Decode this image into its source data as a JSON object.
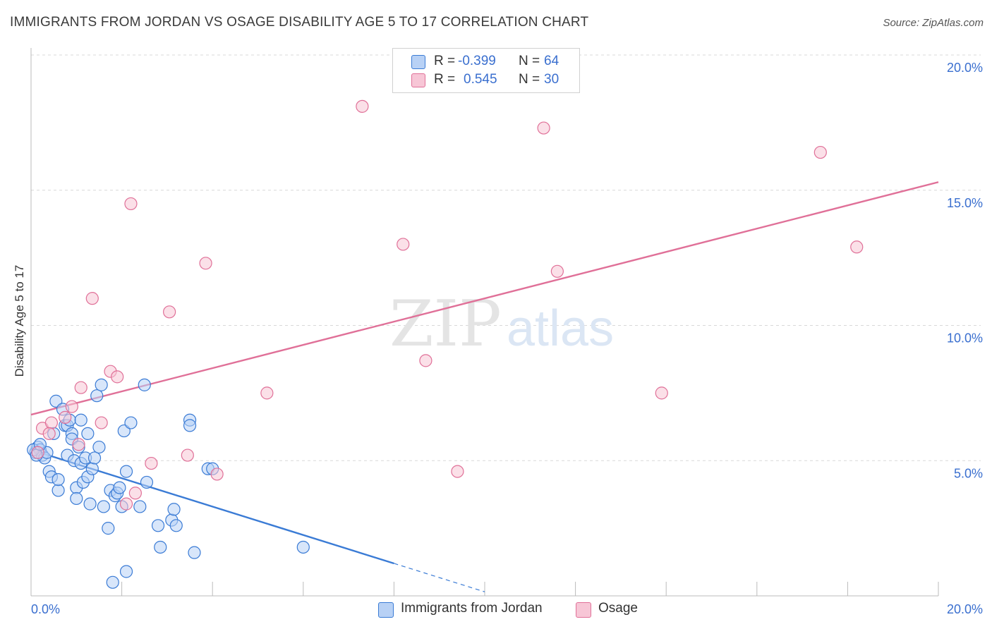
{
  "title": "IMMIGRANTS FROM JORDAN VS OSAGE DISABILITY AGE 5 TO 17 CORRELATION CHART",
  "source": "Source: ZipAtlas.com",
  "colors": {
    "blue": "#3a7bd5",
    "blue_fill": "#b8d1f5",
    "pink": "#e07098",
    "pink_fill": "#f7c6d6",
    "value_text": "#3a6fcf",
    "grid": "#d8d8d8"
  },
  "legend": {
    "rows": [
      {
        "r_label": "R =",
        "r_value": "-0.399",
        "n_label": "N =",
        "n_value": "64"
      },
      {
        "r_label": "R =",
        "r_value": "0.545",
        "n_label": "N =",
        "n_value": "30"
      }
    ]
  },
  "watermark": {
    "zip": "ZIP",
    "atlas": "atlas"
  },
  "chart_data": {
    "type": "scatter",
    "title": "IMMIGRANTS FROM JORDAN VS OSAGE DISABILITY AGE 5 TO 17 CORRELATION CHART",
    "xlabel": "",
    "ylabel": "Disability Age 5 to 17",
    "xlim": [
      0,
      20
    ],
    "ylim": [
      0,
      20
    ],
    "x_tick_labels": [
      "0.0%",
      "20.0%"
    ],
    "y_tick_labels": [
      "5.0%",
      "10.0%",
      "15.0%",
      "20.0%"
    ],
    "y_ticks": [
      5,
      10,
      15,
      20
    ],
    "series": [
      {
        "name": "Immigrants from Jordan",
        "color": "#3a7bd5",
        "trend": {
          "x0": 0,
          "y0": 5.4,
          "x1": 8,
          "y1": 1.2,
          "dash_to_x": 10
        },
        "points": [
          [
            0.1,
            5.3
          ],
          [
            0.15,
            5.5
          ],
          [
            0.2,
            5.4
          ],
          [
            0.25,
            5.2
          ],
          [
            0.3,
            5.1
          ],
          [
            0.35,
            5.3
          ],
          [
            0.4,
            4.6
          ],
          [
            0.45,
            4.4
          ],
          [
            0.5,
            6.0
          ],
          [
            0.55,
            7.2
          ],
          [
            0.6,
            3.9
          ],
          [
            0.6,
            4.3
          ],
          [
            0.7,
            6.9
          ],
          [
            0.75,
            6.3
          ],
          [
            0.8,
            5.2
          ],
          [
            0.8,
            6.3
          ],
          [
            0.85,
            6.5
          ],
          [
            0.9,
            6.0
          ],
          [
            0.9,
            5.8
          ],
          [
            0.95,
            5.0
          ],
          [
            1.0,
            4.0
          ],
          [
            1.0,
            3.6
          ],
          [
            1.05,
            5.5
          ],
          [
            1.1,
            6.5
          ],
          [
            1.1,
            4.9
          ],
          [
            1.15,
            4.2
          ],
          [
            1.2,
            5.1
          ],
          [
            1.25,
            6.0
          ],
          [
            1.25,
            4.4
          ],
          [
            1.3,
            3.4
          ],
          [
            1.35,
            4.7
          ],
          [
            1.4,
            5.1
          ],
          [
            1.45,
            7.4
          ],
          [
            1.5,
            5.5
          ],
          [
            1.55,
            7.8
          ],
          [
            1.6,
            3.3
          ],
          [
            1.7,
            2.5
          ],
          [
            1.75,
            3.9
          ],
          [
            1.8,
            0.5
          ],
          [
            1.85,
            3.7
          ],
          [
            1.9,
            3.8
          ],
          [
            1.95,
            4.0
          ],
          [
            2.0,
            3.3
          ],
          [
            2.05,
            6.1
          ],
          [
            2.1,
            4.6
          ],
          [
            2.1,
            0.9
          ],
          [
            2.2,
            6.4
          ],
          [
            2.4,
            3.3
          ],
          [
            2.5,
            7.8
          ],
          [
            2.55,
            4.2
          ],
          [
            2.8,
            2.6
          ],
          [
            2.85,
            1.8
          ],
          [
            3.1,
            2.8
          ],
          [
            3.15,
            3.2
          ],
          [
            3.2,
            2.6
          ],
          [
            3.5,
            6.5
          ],
          [
            3.5,
            6.3
          ],
          [
            3.6,
            1.6
          ],
          [
            3.9,
            4.7
          ],
          [
            4.0,
            4.7
          ],
          [
            6.0,
            1.8
          ],
          [
            0.05,
            5.4
          ],
          [
            0.12,
            5.2
          ],
          [
            0.2,
            5.6
          ]
        ]
      },
      {
        "name": "Osage",
        "color": "#e07098",
        "trend": {
          "x0": 0,
          "y0": 6.7,
          "x1": 20,
          "y1": 15.3
        },
        "points": [
          [
            0.15,
            5.3
          ],
          [
            0.25,
            6.2
          ],
          [
            0.45,
            6.4
          ],
          [
            0.75,
            6.6
          ],
          [
            0.9,
            7.0
          ],
          [
            1.05,
            5.6
          ],
          [
            1.1,
            7.7
          ],
          [
            1.35,
            11.0
          ],
          [
            1.55,
            6.4
          ],
          [
            1.75,
            8.3
          ],
          [
            1.9,
            8.1
          ],
          [
            2.1,
            3.4
          ],
          [
            2.2,
            14.5
          ],
          [
            2.3,
            3.8
          ],
          [
            2.65,
            4.9
          ],
          [
            3.05,
            10.5
          ],
          [
            3.45,
            5.2
          ],
          [
            3.85,
            12.3
          ],
          [
            4.1,
            4.5
          ],
          [
            5.2,
            7.5
          ],
          [
            7.3,
            18.1
          ],
          [
            8.2,
            13.0
          ],
          [
            8.7,
            8.7
          ],
          [
            9.4,
            4.6
          ],
          [
            11.3,
            17.3
          ],
          [
            11.6,
            12.0
          ],
          [
            13.9,
            7.5
          ],
          [
            17.4,
            16.4
          ],
          [
            18.2,
            12.9
          ],
          [
            0.4,
            6.0
          ]
        ]
      }
    ]
  }
}
